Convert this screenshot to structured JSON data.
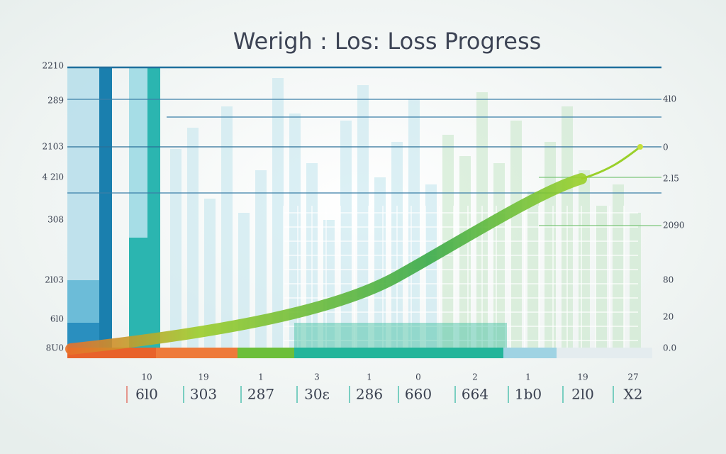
{
  "chart": {
    "title": "Werigh : Los: Loss Progress",
    "left_labels": [
      "2210",
      "289",
      "2103",
      "4 2l0",
      "308",
      "2l03",
      "6l0",
      "8U0"
    ],
    "right_labels": [
      "4l0",
      "0",
      "2.l5",
      "2090",
      "80",
      "20",
      "0.0"
    ],
    "bottom_top_labels": [
      "10",
      "19",
      "1",
      "3",
      "1",
      "0",
      "2",
      "1",
      "19",
      "27"
    ],
    "bottom_labels": [
      "6l0",
      "303",
      "287",
      "30ɛ",
      "286",
      "660",
      "664",
      "1b0",
      "2l0",
      "X2"
    ]
  }
}
